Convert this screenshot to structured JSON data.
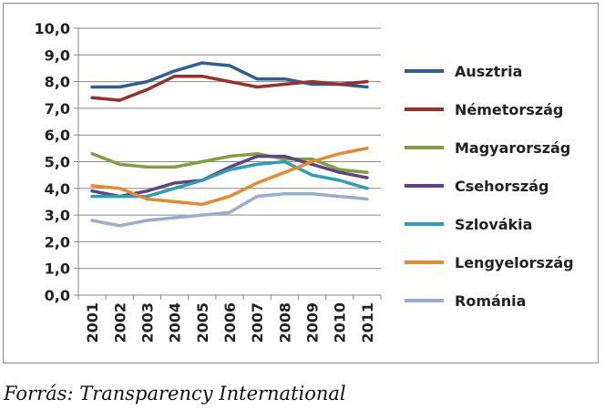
{
  "source": "Forrás: Transparency International",
  "chart_data": {
    "type": "line",
    "x": [
      "2001",
      "2002",
      "2003",
      "2004",
      "2005",
      "2006",
      "2007",
      "2008",
      "2009",
      "2010",
      "2011"
    ],
    "ylim": [
      0,
      10
    ],
    "yticks": [
      "0,0",
      "1,0",
      "2,0",
      "3,0",
      "4,0",
      "5,0",
      "6,0",
      "7,0",
      "8,0",
      "9,0",
      "10,0"
    ],
    "grid": true,
    "legend_position": "right",
    "series": [
      {
        "name": "Ausztria",
        "color": "#2f5d95",
        "values": [
          7.8,
          7.8,
          8.0,
          8.4,
          8.7,
          8.6,
          8.1,
          8.1,
          7.9,
          7.9,
          7.8
        ]
      },
      {
        "name": "Németország",
        "color": "#9b2f2c",
        "values": [
          7.4,
          7.3,
          7.7,
          8.2,
          8.2,
          8.0,
          7.8,
          7.9,
          8.0,
          7.9,
          8.0
        ]
      },
      {
        "name": "Magyarország",
        "color": "#7fa03a",
        "values": [
          5.3,
          4.9,
          4.8,
          4.8,
          5.0,
          5.2,
          5.3,
          5.1,
          5.1,
          4.7,
          4.6
        ]
      },
      {
        "name": "Csehország",
        "color": "#5f4485",
        "values": [
          3.9,
          3.7,
          3.9,
          4.2,
          4.3,
          4.8,
          5.2,
          5.2,
          4.9,
          4.6,
          4.4
        ]
      },
      {
        "name": "Szlovákia",
        "color": "#2aa0b5",
        "values": [
          3.7,
          3.7,
          3.7,
          4.0,
          4.3,
          4.7,
          4.9,
          5.0,
          4.5,
          4.3,
          4.0
        ]
      },
      {
        "name": "Lengyelország",
        "color": "#e58a2e",
        "values": [
          4.1,
          4.0,
          3.6,
          3.5,
          3.4,
          3.7,
          4.2,
          4.6,
          5.0,
          5.3,
          5.5
        ]
      },
      {
        "name": "Románia",
        "color": "#9aadd0",
        "values": [
          2.8,
          2.6,
          2.8,
          2.9,
          3.0,
          3.1,
          3.7,
          3.8,
          3.8,
          3.7,
          3.6
        ]
      }
    ]
  }
}
